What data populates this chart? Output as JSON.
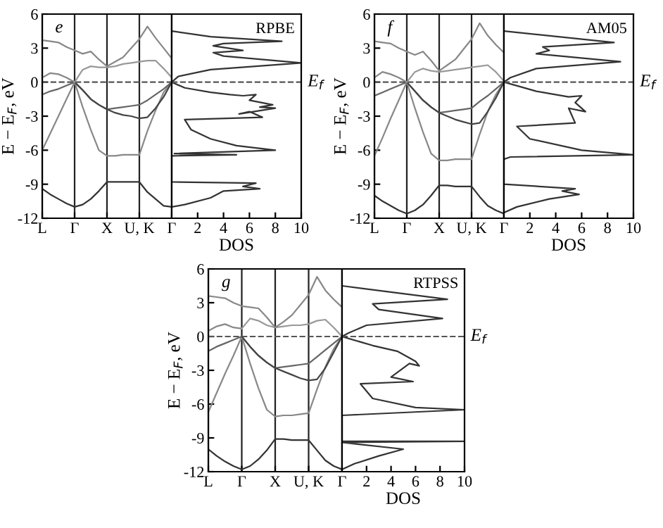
{
  "chart_data": [
    {
      "type": "line",
      "categories": [
        "L",
        null,
        null,
        null,
        "Γ",
        null,
        null,
        null,
        "X",
        null,
        null,
        null,
        "U, K",
        null,
        null,
        null,
        "Γ"
      ],
      "grid": "x",
      "ylim": [
        -12,
        6
      ],
      "yticks": [
        -12,
        -9,
        -6,
        -3,
        0,
        3,
        6
      ],
      "ylabel": "E − E$_{F}$, eV",
      "annotations": [
        "e"
      ],
      "ref_lines": [
        {
          "axis": "y",
          "value": 0,
          "line_style": "dashed",
          "color": "#555555"
        }
      ],
      "series": [
        {
          "color": "#333333",
          "values": [
            -9.4,
            -9.9,
            -10.3,
            -10.7,
            -11,
            -10.8,
            -10.3,
            -9.6,
            -8.8,
            -8.8,
            -8.8,
            -8.8,
            -8.8,
            -9.7,
            -10.3,
            -10.9,
            -11
          ]
        },
        {
          "color": "#888888",
          "values": [
            -6,
            -4.5,
            -3,
            -1.5,
            0,
            -2.2,
            -4.2,
            -6,
            -6.5,
            -6.5,
            -6.4,
            -6.4,
            -6.4,
            -4.3,
            -2.5,
            -0.9,
            0
          ]
        },
        {
          "color": "#666666",
          "values": [
            -1.1,
            -0.8,
            -0.6,
            -0.3,
            0,
            -0.7,
            -1.5,
            -2,
            -2.4,
            -2.3,
            -2.2,
            -2.1,
            -2,
            -1.6,
            -1.1,
            -0.6,
            0
          ]
        },
        {
          "color": "#444444",
          "values": [
            null,
            null,
            null,
            null,
            0,
            -0.7,
            -1.5,
            -2,
            -2.4,
            -2.7,
            -2.9,
            -3.0,
            -3.2,
            -3.1,
            -2.3,
            -1.3,
            0
          ]
        },
        {
          "color": "#888888",
          "values": [
            0.4,
            0.8,
            0.7,
            0.4,
            0,
            null,
            null,
            null,
            null,
            null,
            null,
            null,
            null,
            null,
            null,
            null,
            null
          ]
        },
        {
          "color": "#999999",
          "values": [
            null,
            null,
            null,
            null,
            0,
            1.1,
            1.4,
            1.3,
            1.3,
            1.4,
            1.6,
            1.7,
            1.8,
            1.9,
            1.9,
            1.2,
            0.4
          ]
        },
        {
          "color": "#888888",
          "values": [
            3.7,
            3.6,
            3.5,
            3.1,
            2.8,
            2.5,
            2.7,
            2.0,
            1.4,
            1.8,
            2.2,
            3.0,
            3.8,
            4.9,
            3.9,
            3.0,
            2.1
          ]
        }
      ]
    },
    {
      "type": "line",
      "xlim": [
        0,
        10
      ],
      "xticks": [
        2,
        4,
        6,
        8,
        10
      ],
      "xlabel": "DOS",
      "ylim": [
        -12,
        6
      ],
      "tick_labels": "x",
      "annotations": [
        "RPBE",
        "E$_{f}$"
      ],
      "ref_lines": [
        {
          "axis": "y",
          "value": 0,
          "line_style": "dashed",
          "color": "#555555"
        }
      ],
      "series": [
        {
          "color": "#333333",
          "x": [
            0,
            3,
            8.5,
            4,
            3.2,
            5.5,
            3.2,
            4,
            10,
            3,
            0.5,
            0,
            1,
            3,
            4.5,
            5.5,
            6.5,
            6,
            7.8,
            6.8,
            8,
            5.2,
            6,
            7,
            1,
            1.5,
            3,
            5,
            8,
            0.2,
            5,
            0,
            0,
            6.5,
            5.5,
            6.8,
            4,
            3,
            1,
            0
          ],
          "values": [
            4.5,
            4.0,
            3.6,
            3.4,
            3.2,
            2.8,
            2.6,
            2.3,
            1.7,
            1.1,
            0.5,
            0,
            -0.5,
            -0.9,
            -1.1,
            -1.2,
            -1.1,
            -1.6,
            -2.0,
            -2.2,
            -2.3,
            -2.8,
            -2.6,
            -3.1,
            -3.3,
            -4.2,
            -5,
            -5.6,
            -6,
            -6.3,
            -6.4,
            -6.5,
            -8.8,
            -8.9,
            -9.2,
            -9.4,
            -9.6,
            -10.2,
            -10.8,
            -11
          ]
        }
      ]
    },
    {
      "type": "line",
      "categories": [
        "L",
        null,
        null,
        null,
        "Γ",
        null,
        null,
        null,
        "X",
        null,
        null,
        null,
        "U, K",
        null,
        null,
        null,
        "Γ"
      ],
      "grid": "x",
      "ylim": [
        -12,
        6
      ],
      "yticks": [
        -12,
        -9,
        -6,
        -3,
        0,
        3,
        6
      ],
      "ylabel": "E − E$_{F}$, eV",
      "annotations": [
        "f"
      ],
      "ref_lines": [
        {
          "axis": "y",
          "value": 0,
          "line_style": "dashed",
          "color": "#555555"
        }
      ],
      "series": [
        {
          "color": "#333333",
          "values": [
            -10,
            -10.5,
            -10.9,
            -11.3,
            -11.6,
            -11.3,
            -10.8,
            -10,
            -9.1,
            -9.1,
            -9.2,
            -9.2,
            -9.2,
            -10.1,
            -10.9,
            -11.3,
            -11.6
          ]
        },
        {
          "color": "#888888",
          "values": [
            -6.5,
            -4.9,
            -3.2,
            -1.6,
            0,
            -2.3,
            -4.4,
            -6.3,
            -6.9,
            -6.9,
            -6.8,
            -6.8,
            -6.8,
            -4.6,
            -2.6,
            -1.1,
            0
          ]
        },
        {
          "color": "#666666",
          "values": [
            -1.2,
            -0.9,
            -0.6,
            -0.3,
            0,
            -0.8,
            -1.6,
            -2.2,
            -2.7,
            -2.6,
            -2.5,
            -2.4,
            -2.3,
            -1.7,
            -1.2,
            -0.6,
            0
          ]
        },
        {
          "color": "#444444",
          "values": [
            null,
            null,
            null,
            null,
            0,
            -0.8,
            -1.6,
            -2.2,
            -2.7,
            -3.0,
            -3.3,
            -3.5,
            -3.7,
            -3.6,
            -2.6,
            -1.4,
            0
          ]
        },
        {
          "color": "#888888",
          "values": [
            0.4,
            0.9,
            0.7,
            0.4,
            0,
            null,
            null,
            null,
            null,
            null,
            null,
            null,
            null,
            null,
            null,
            null,
            null
          ]
        },
        {
          "color": "#999999",
          "values": [
            null,
            null,
            null,
            null,
            0,
            0.9,
            1.2,
            1.0,
            0.9,
            1.0,
            1.1,
            1.2,
            1.3,
            1.4,
            1.5,
            0.9,
            0.1
          ]
        },
        {
          "color": "#888888",
          "values": [
            3.6,
            3.5,
            3.4,
            3.0,
            2.7,
            2.4,
            2.7,
            1.9,
            1.0,
            1.5,
            2.0,
            2.9,
            3.8,
            5.2,
            4.1,
            3.3,
            2.6
          ]
        }
      ]
    },
    {
      "type": "line",
      "xlim": [
        0,
        10
      ],
      "xticks": [
        2,
        4,
        6,
        8,
        10
      ],
      "xlabel": "DOS",
      "ylim": [
        -12,
        6
      ],
      "tick_labels": "x",
      "annotations": [
        "AM05",
        "E$_{f}$"
      ],
      "ref_lines": [
        {
          "axis": "y",
          "value": 0,
          "line_style": "dashed",
          "color": "#555555"
        }
      ],
      "series": [
        {
          "color": "#333333",
          "x": [
            0,
            8.5,
            3,
            3.5,
            2.5,
            9,
            2.5,
            0.5,
            0,
            2.5,
            5,
            6,
            5.5,
            6.3,
            5,
            5.5,
            1,
            2,
            6,
            10,
            0.5,
            0,
            0,
            5.5,
            4.5,
            5.8,
            3.5,
            1,
            0
          ],
          "values": [
            4.5,
            3.5,
            3.1,
            2.8,
            2.5,
            1.8,
            1.2,
            0.4,
            0,
            -0.8,
            -1.3,
            -1.2,
            -1.8,
            -2.6,
            -2.3,
            -3.6,
            -3.9,
            -5,
            -6.0,
            -6.4,
            -6.6,
            -6.8,
            -9.0,
            -9.4,
            -9.6,
            -9.9,
            -10.3,
            -11,
            -11.5
          ]
        }
      ]
    },
    {
      "type": "line",
      "categories": [
        "L",
        null,
        null,
        null,
        "Γ",
        null,
        null,
        null,
        "X",
        null,
        null,
        null,
        "U, K",
        null,
        null,
        null,
        "Γ"
      ],
      "grid": "x",
      "ylim": [
        -12,
        6
      ],
      "yticks": [
        -12,
        -9,
        -6,
        -3,
        0,
        3,
        6
      ],
      "ylabel": "E − E$_{F}$, eV",
      "annotations": [
        "g"
      ],
      "ref_lines": [
        {
          "axis": "y",
          "value": 0,
          "line_style": "dashed",
          "color": "#555555"
        }
      ],
      "series": [
        {
          "color": "#333333",
          "values": [
            -10,
            -10.6,
            -11.1,
            -11.5,
            -11.8,
            -11.5,
            -10.9,
            -10.1,
            -9.1,
            -9.1,
            -9.2,
            -9.2,
            -9.2,
            -10.1,
            -11,
            -11.5,
            -11.8
          ]
        },
        {
          "color": "#888888",
          "values": [
            -6.7,
            -5,
            -3.3,
            -1.7,
            0,
            -2.4,
            -4.6,
            -6.5,
            -7.1,
            -7.0,
            -7.0,
            -6.9,
            -6.8,
            -4.7,
            -2.7,
            -1.1,
            0
          ]
        },
        {
          "color": "#666666",
          "values": [
            -1.3,
            -0.9,
            -0.6,
            -0.3,
            0,
            -0.9,
            -1.7,
            -2.3,
            -2.8,
            -2.7,
            -2.6,
            -2.5,
            -2.4,
            -1.8,
            -1.2,
            -0.6,
            0
          ]
        },
        {
          "color": "#444444",
          "values": [
            null,
            null,
            null,
            null,
            0,
            -0.9,
            -1.7,
            -2.3,
            -2.8,
            -3.1,
            -3.4,
            -3.7,
            -3.9,
            -3.8,
            -2.8,
            -1.4,
            0
          ]
        },
        {
          "color": "#888888",
          "values": [
            0.5,
            0.9,
            1.1,
            0.8,
            0.7,
            null,
            null,
            null,
            null,
            null,
            null,
            null,
            null,
            null,
            null,
            null,
            null
          ]
        },
        {
          "color": "#999999",
          "values": [
            null,
            null,
            null,
            null,
            0.7,
            1.6,
            1.4,
            1.0,
            0.8,
            0.9,
            1.0,
            1.0,
            1.1,
            1.4,
            1.5,
            0.8,
            0
          ]
        },
        {
          "color": "#888888",
          "values": [
            3.6,
            3.5,
            3.4,
            3.0,
            2.7,
            2.6,
            2.5,
            1.7,
            0.8,
            1.3,
            1.9,
            2.8,
            3.7,
            5.3,
            4.1,
            3.3,
            2.6
          ]
        }
      ]
    },
    {
      "type": "line",
      "xlim": [
        0,
        10
      ],
      "xticks": [
        2,
        4,
        6,
        8,
        10
      ],
      "xlabel": "DOS",
      "ylim": [
        -12,
        6
      ],
      "tick_labels": "x",
      "annotations": [
        "RTPSS",
        "E$_{f}$"
      ],
      "ref_lines": [
        {
          "axis": "y",
          "value": 0,
          "line_style": "dashed",
          "color": "#555555"
        }
      ],
      "series": [
        {
          "color": "#333333",
          "x": [
            0,
            8.6,
            2.5,
            3,
            8.2,
            2,
            0.5,
            0,
            2.5,
            4.5,
            6,
            6.3,
            5.5,
            4,
            5.8,
            1.5,
            2.5,
            6,
            10,
            0,
            0,
            10,
            0,
            5,
            3,
            1,
            0
          ],
          "values": [
            4.5,
            3.3,
            2.9,
            2.4,
            1.6,
            1.0,
            0.3,
            0,
            -0.8,
            -1.3,
            -2.2,
            -2.6,
            -2.4,
            -3.6,
            -4,
            -4.2,
            -5.5,
            -6.3,
            -6.5,
            -7,
            -9.3,
            -9.3,
            -9.4,
            -10,
            -10.6,
            -11.3,
            -11.8
          ]
        }
      ]
    }
  ]
}
